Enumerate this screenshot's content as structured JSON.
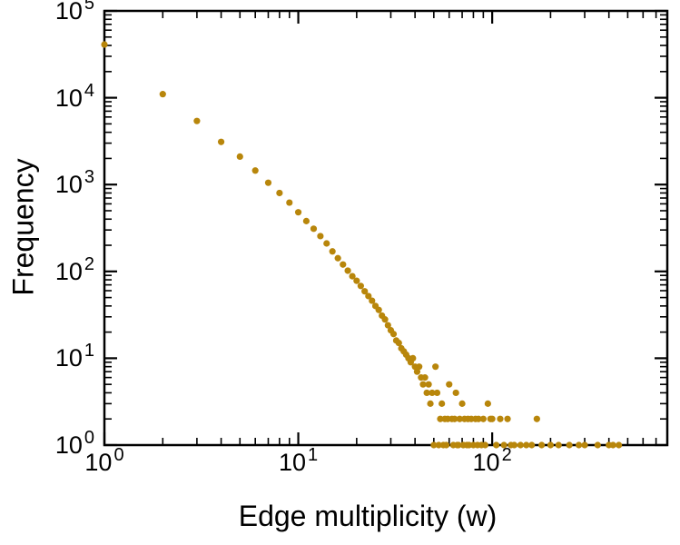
{
  "chart_data": {
    "type": "scatter",
    "title": "",
    "xlabel": "Edge multiplicity (w)",
    "ylabel": "Frequency",
    "x_scale": "log",
    "y_scale": "log",
    "xlim": [
      1,
      800
    ],
    "ylim": [
      1,
      100000
    ],
    "grid": false,
    "legend": null,
    "background": "#ffffff",
    "frame_color": "#000000",
    "tick_color": "#000000",
    "marker": {
      "shape": "circle",
      "color": "#b8860b",
      "radius": 3.6
    },
    "x_ticks": [
      {
        "label": "10^0",
        "value": 1
      },
      {
        "label": "10^1",
        "value": 10
      },
      {
        "label": "10^2",
        "value": 100
      }
    ],
    "y_ticks": [
      {
        "label": "10^0",
        "value": 1
      },
      {
        "label": "10^1",
        "value": 10
      },
      {
        "label": "10^2",
        "value": 100
      },
      {
        "label": "10^3",
        "value": 1000
      },
      {
        "label": "10^4",
        "value": 10000
      },
      {
        "label": "10^5",
        "value": 100000
      }
    ],
    "points": [
      [
        1,
        41000
      ],
      [
        2,
        11000
      ],
      [
        3,
        5400
      ],
      [
        4,
        3100
      ],
      [
        5,
        2100
      ],
      [
        6,
        1450
      ],
      [
        7,
        1050
      ],
      [
        8,
        800
      ],
      [
        9,
        620
      ],
      [
        10,
        480
      ],
      [
        11,
        380
      ],
      [
        12,
        310
      ],
      [
        13,
        255
      ],
      [
        14,
        210
      ],
      [
        15,
        170
      ],
      [
        16,
        142
      ],
      [
        17,
        120
      ],
      [
        18,
        102
      ],
      [
        19,
        88
      ],
      [
        20,
        78
      ],
      [
        21,
        68
      ],
      [
        22,
        59
      ],
      [
        23,
        52
      ],
      [
        24,
        46
      ],
      [
        25,
        40
      ],
      [
        26,
        36
      ],
      [
        27,
        31
      ],
      [
        28,
        28
      ],
      [
        29,
        24
      ],
      [
        30,
        21
      ],
      [
        31,
        19
      ],
      [
        32,
        16
      ],
      [
        33,
        15
      ],
      [
        34,
        13
      ],
      [
        35,
        12
      ],
      [
        36,
        11
      ],
      [
        37,
        10
      ],
      [
        38,
        9
      ],
      [
        39,
        10
      ],
      [
        40,
        8
      ],
      [
        41,
        7
      ],
      [
        42,
        8
      ],
      [
        43,
        6
      ],
      [
        44,
        5
      ],
      [
        45,
        6
      ],
      [
        46,
        4
      ],
      [
        47,
        5
      ],
      [
        48,
        3
      ],
      [
        49,
        4
      ],
      [
        50,
        1
      ],
      [
        51,
        8
      ],
      [
        52,
        4
      ],
      [
        53,
        1
      ],
      [
        54,
        2
      ],
      [
        55,
        3
      ],
      [
        56,
        1
      ],
      [
        57,
        2
      ],
      [
        58,
        1
      ],
      [
        59,
        2
      ],
      [
        60,
        5
      ],
      [
        62,
        2
      ],
      [
        63,
        1
      ],
      [
        64,
        2
      ],
      [
        65,
        4
      ],
      [
        66,
        1
      ],
      [
        67,
        1
      ],
      [
        68,
        2
      ],
      [
        70,
        3
      ],
      [
        71,
        1
      ],
      [
        72,
        2
      ],
      [
        74,
        1
      ],
      [
        75,
        2
      ],
      [
        76,
        1
      ],
      [
        78,
        2
      ],
      [
        80,
        1
      ],
      [
        82,
        2
      ],
      [
        84,
        1
      ],
      [
        85,
        2
      ],
      [
        88,
        1
      ],
      [
        90,
        2
      ],
      [
        92,
        1
      ],
      [
        95,
        3
      ],
      [
        98,
        2
      ],
      [
        100,
        2
      ],
      [
        105,
        1
      ],
      [
        110,
        2
      ],
      [
        115,
        1
      ],
      [
        120,
        2
      ],
      [
        125,
        1
      ],
      [
        130,
        1
      ],
      [
        140,
        1
      ],
      [
        150,
        1
      ],
      [
        160,
        1
      ],
      [
        170,
        2
      ],
      [
        180,
        1
      ],
      [
        200,
        1
      ],
      [
        220,
        1
      ],
      [
        250,
        1
      ],
      [
        280,
        1
      ],
      [
        300,
        1
      ],
      [
        350,
        1
      ],
      [
        400,
        1
      ],
      [
        420,
        1
      ],
      [
        450,
        1
      ]
    ]
  }
}
